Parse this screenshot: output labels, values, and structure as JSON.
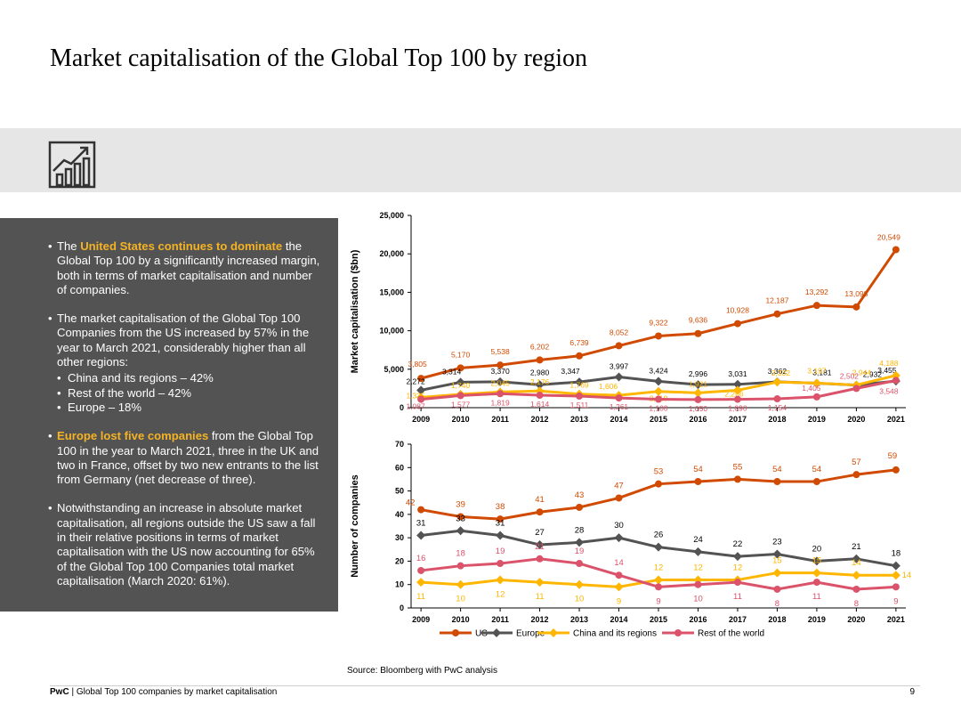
{
  "title": "Market capitalisation of the Global Top 100 by region",
  "icon": "growth-chart-icon",
  "panel": {
    "b1_pre": "The ",
    "b1_hl": "United States continues to dominate",
    "b1_post": " the Global Top 100 by a significantly increased margin, both in terms of market capitalisation and number of companies.",
    "b2": "The market capitalisation of the Global Top 100 Companies from the US increased by 57% in the year to March 2021, considerably higher than all other regions:",
    "b2_subs": [
      "China and its regions – 42%",
      "Rest of the world – 42%",
      "Europe – 18%"
    ],
    "b3_hl": "Europe lost five companies",
    "b3_post": " from the Global Top 100 in the year to March 2021, three in the UK and two in France, offset by two new entrants to the list from Germany (net decrease of three).",
    "b4": "Notwithstanding an increase in absolute market capitalisation, all regions outside the US saw a fall in their relative positions in terms of market capitalisation with the US now accounting for 65% of the Global Top 100 Companies total market capitalisation (March 2020: 61%)."
  },
  "chart_data": [
    {
      "type": "line",
      "title": "",
      "ylabel": "Market capitalisation ($bn)",
      "xlabel": "",
      "categories": [
        "2009",
        "2010",
        "2011",
        "2012",
        "2013",
        "2014",
        "2015",
        "2016",
        "2017",
        "2018",
        "2019",
        "2020",
        "2021"
      ],
      "ylim": [
        0,
        25000
      ],
      "yticks": [
        "0",
        "5,000",
        "10,000",
        "15,000",
        "20,000",
        "25,000"
      ],
      "series": [
        {
          "name": "US",
          "color": "#d04a02",
          "values": [
            3805,
            5170,
            5538,
            6202,
            6739,
            8052,
            9322,
            9636,
            10928,
            12187,
            13292,
            13098,
            20549
          ],
          "labels": [
            "3,805",
            "5,170",
            "5,538",
            "6,202",
            "6,739",
            "8,052",
            "9,322",
            "9,636",
            "10,928",
            "12,187",
            "13,292",
            "13,098",
            "20,549"
          ]
        },
        {
          "name": "Europe",
          "color": "#535353",
          "values": [
            2272,
            3314,
            3370,
            2980,
            3347,
            3997,
            3424,
            2996,
            3031,
            3362,
            3181,
            2932,
            3455
          ],
          "labels": [
            "2,272",
            "3,314",
            "3,370",
            "2,980",
            "3,347",
            "3,997",
            "3,424",
            "2,996",
            "3,031",
            "3,362",
            "3,181",
            "2,932",
            "3,455"
          ]
        },
        {
          "name": "China and its regions",
          "color": "#ffb600",
          "values": [
            1335,
            1740,
            2045,
            2176,
            1769,
            1606,
            2119,
            1921,
            2266,
            3332,
            3197,
            2944,
            4188
          ],
          "labels": [
            "1,335",
            "1,740",
            "2,045",
            "2,176",
            "1,769",
            "1,606",
            "2,119",
            "1,921",
            "2,266",
            "3,332",
            "3,197",
            "2,944",
            "4,188"
          ]
        },
        {
          "name": "Rest of the world",
          "color": "#db536a",
          "values": [
            1087,
            1577,
            1819,
            1614,
            1511,
            1261,
            1100,
            1050,
            1090,
            1154,
            1405,
            2502,
            3548
          ],
          "labels": [
            "1,087",
            "1,577",
            "1,819",
            "1,614",
            "1,511",
            "1,261",
            "1,100",
            "1,050",
            "1,090",
            "1,154",
            "1,405",
            "2,502",
            "3,548"
          ]
        }
      ]
    },
    {
      "type": "line",
      "title": "",
      "ylabel": "Number of companies",
      "xlabel": "",
      "categories": [
        "2009",
        "2010",
        "2011",
        "2012",
        "2013",
        "2014",
        "2015",
        "2016",
        "2017",
        "2018",
        "2019",
        "2020",
        "2021"
      ],
      "ylim": [
        0,
        70
      ],
      "yticks": [
        "0",
        "10",
        "20",
        "30",
        "40",
        "50",
        "60",
        "70"
      ],
      "legend": "bottom",
      "series": [
        {
          "name": "US",
          "color": "#d04a02",
          "values": [
            42,
            39,
            38,
            41,
            43,
            47,
            53,
            54,
            55,
            54,
            54,
            57,
            59
          ],
          "labels": [
            "42",
            "39",
            "38",
            "41",
            "43",
            "47",
            "53",
            "54",
            "55",
            "54",
            "54",
            "57",
            "59"
          ]
        },
        {
          "name": "Europe",
          "color": "#535353",
          "values": [
            31,
            33,
            31,
            27,
            28,
            30,
            26,
            24,
            22,
            23,
            20,
            21,
            18
          ],
          "labels": [
            "31",
            "33",
            "31",
            "27",
            "28",
            "30",
            "26",
            "24",
            "22",
            "23",
            "20",
            "21",
            "18"
          ]
        },
        {
          "name": "China and its regions",
          "color": "#ffb600",
          "values": [
            11,
            10,
            12,
            11,
            10,
            9,
            12,
            12,
            12,
            15,
            15,
            14,
            14
          ],
          "labels": [
            "11",
            "10",
            "12",
            "11",
            "10",
            "9",
            "12",
            "12",
            "12",
            "15",
            "15",
            "14",
            "14"
          ]
        },
        {
          "name": "Rest of the world",
          "color": "#db536a",
          "values": [
            16,
            18,
            19,
            21,
            19,
            14,
            9,
            10,
            11,
            8,
            11,
            8,
            9
          ],
          "labels": [
            "16",
            "18",
            "19",
            "21",
            "19",
            "14",
            "9",
            "10",
            "11",
            "8",
            "11",
            "8",
            "9"
          ]
        }
      ]
    }
  ],
  "source": "Source: Bloomberg with PwC analysis",
  "footer": {
    "brand": "PwC",
    "text": " | Global Top 100 companies by market capitalisation",
    "page": "9"
  }
}
